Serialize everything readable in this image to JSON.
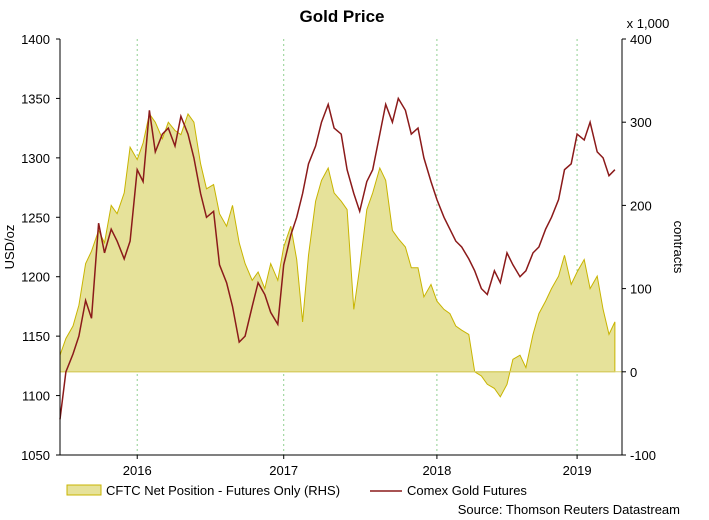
{
  "chart_data": {
    "type": "line",
    "title": "Gold Price",
    "source": "Source: Thomson Reuters Datastream",
    "left_axis": {
      "label": "USD/oz",
      "range": [
        1050,
        1400
      ],
      "ticks": [
        "1050",
        "1100",
        "1150",
        "1200",
        "1250",
        "1300",
        "1350",
        "1400"
      ]
    },
    "right_axis": {
      "label": "contracts",
      "multiplier_label": "x 1,000",
      "range": [
        -100,
        400
      ],
      "ticks": [
        "-100",
        "0",
        "100",
        "200",
        "300",
        "400"
      ]
    },
    "x_axis": {
      "range": [
        "2015-08-01",
        "2019-04-01"
      ],
      "tick_labels": [
        {
          "label": "2016",
          "date": "2016-02-01"
        },
        {
          "label": "2017",
          "date": "2017-01-15"
        },
        {
          "label": "2018",
          "date": "2018-01-15"
        },
        {
          "label": "2019",
          "date": "2018-12-15"
        }
      ]
    },
    "grid": true,
    "legend_position": "bottom",
    "series": [
      {
        "name": "CFTC Net Position - Futures Only (RHS)",
        "kind": "area",
        "axis": "right",
        "color": "#e6e29a",
        "stroke": "#c8b400",
        "points": [
          [
            "2015-08-01",
            20
          ],
          [
            "2015-08-15",
            40
          ],
          [
            "2015-09-01",
            55
          ],
          [
            "2015-09-15",
            80
          ],
          [
            "2015-10-01",
            130
          ],
          [
            "2015-10-15",
            145
          ],
          [
            "2015-11-01",
            170
          ],
          [
            "2015-11-15",
            155
          ],
          [
            "2015-12-01",
            200
          ],
          [
            "2015-12-15",
            190
          ],
          [
            "2016-01-01",
            215
          ],
          [
            "2016-01-15",
            270
          ],
          [
            "2016-02-01",
            255
          ],
          [
            "2016-02-15",
            275
          ],
          [
            "2016-03-01",
            310
          ],
          [
            "2016-03-15",
            300
          ],
          [
            "2016-04-01",
            280
          ],
          [
            "2016-04-15",
            300
          ],
          [
            "2016-05-01",
            290
          ],
          [
            "2016-05-15",
            285
          ],
          [
            "2016-06-01",
            310
          ],
          [
            "2016-06-15",
            300
          ],
          [
            "2016-07-01",
            250
          ],
          [
            "2016-07-15",
            220
          ],
          [
            "2016-08-01",
            225
          ],
          [
            "2016-08-15",
            190
          ],
          [
            "2016-09-01",
            175
          ],
          [
            "2016-09-15",
            200
          ],
          [
            "2016-10-01",
            155
          ],
          [
            "2016-10-15",
            130
          ],
          [
            "2016-11-01",
            110
          ],
          [
            "2016-11-15",
            120
          ],
          [
            "2016-12-01",
            100
          ],
          [
            "2016-12-15",
            130
          ],
          [
            "2017-01-01",
            110
          ],
          [
            "2017-01-15",
            150
          ],
          [
            "2017-02-01",
            175
          ],
          [
            "2017-02-15",
            135
          ],
          [
            "2017-03-01",
            60
          ],
          [
            "2017-03-15",
            140
          ],
          [
            "2017-04-01",
            205
          ],
          [
            "2017-04-15",
            230
          ],
          [
            "2017-05-01",
            245
          ],
          [
            "2017-05-15",
            215
          ],
          [
            "2017-06-01",
            205
          ],
          [
            "2017-06-15",
            195
          ],
          [
            "2017-07-01",
            75
          ],
          [
            "2017-07-15",
            125
          ],
          [
            "2017-08-01",
            195
          ],
          [
            "2017-08-15",
            215
          ],
          [
            "2017-09-01",
            245
          ],
          [
            "2017-09-15",
            230
          ],
          [
            "2017-10-01",
            170
          ],
          [
            "2017-10-15",
            160
          ],
          [
            "2017-11-01",
            150
          ],
          [
            "2017-11-15",
            125
          ],
          [
            "2017-12-01",
            125
          ],
          [
            "2017-12-15",
            90
          ],
          [
            "2018-01-01",
            105
          ],
          [
            "2018-01-15",
            85
          ],
          [
            "2018-02-01",
            75
          ],
          [
            "2018-02-15",
            70
          ],
          [
            "2018-03-01",
            55
          ],
          [
            "2018-03-15",
            50
          ],
          [
            "2018-04-01",
            45
          ],
          [
            "2018-04-15",
            0
          ],
          [
            "2018-05-01",
            -5
          ],
          [
            "2018-05-15",
            -15
          ],
          [
            "2018-06-01",
            -20
          ],
          [
            "2018-06-15",
            -30
          ],
          [
            "2018-07-01",
            -15
          ],
          [
            "2018-07-15",
            15
          ],
          [
            "2018-08-01",
            20
          ],
          [
            "2018-08-15",
            5
          ],
          [
            "2018-09-01",
            45
          ],
          [
            "2018-09-15",
            70
          ],
          [
            "2018-10-01",
            85
          ],
          [
            "2018-10-15",
            100
          ],
          [
            "2018-11-01",
            115
          ],
          [
            "2018-11-15",
            140
          ],
          [
            "2018-12-01",
            105
          ],
          [
            "2018-12-15",
            120
          ],
          [
            "2019-01-01",
            135
          ],
          [
            "2019-01-15",
            100
          ],
          [
            "2019-02-01",
            115
          ],
          [
            "2019-02-15",
            75
          ],
          [
            "2019-03-01",
            45
          ],
          [
            "2019-03-15",
            60
          ]
        ]
      },
      {
        "name": "Comex Gold Futures",
        "kind": "line",
        "axis": "left",
        "color": "#8b1a1a",
        "points": [
          [
            "2015-08-01",
            1080
          ],
          [
            "2015-08-15",
            1120
          ],
          [
            "2015-09-01",
            1135
          ],
          [
            "2015-09-15",
            1150
          ],
          [
            "2015-10-01",
            1180
          ],
          [
            "2015-10-15",
            1165
          ],
          [
            "2015-11-01",
            1245
          ],
          [
            "2015-11-15",
            1220
          ],
          [
            "2015-12-01",
            1240
          ],
          [
            "2015-12-15",
            1230
          ],
          [
            "2016-01-01",
            1215
          ],
          [
            "2016-01-15",
            1230
          ],
          [
            "2016-02-01",
            1290
          ],
          [
            "2016-02-15",
            1280
          ],
          [
            "2016-03-01",
            1340
          ],
          [
            "2016-03-15",
            1305
          ],
          [
            "2016-04-01",
            1320
          ],
          [
            "2016-04-15",
            1325
          ],
          [
            "2016-05-01",
            1310
          ],
          [
            "2016-05-15",
            1335
          ],
          [
            "2016-06-01",
            1320
          ],
          [
            "2016-06-15",
            1300
          ],
          [
            "2016-07-01",
            1270
          ],
          [
            "2016-07-15",
            1250
          ],
          [
            "2016-08-01",
            1255
          ],
          [
            "2016-08-15",
            1210
          ],
          [
            "2016-09-01",
            1195
          ],
          [
            "2016-09-15",
            1175
          ],
          [
            "2016-10-01",
            1145
          ],
          [
            "2016-10-15",
            1150
          ],
          [
            "2016-11-01",
            1175
          ],
          [
            "2016-11-15",
            1195
          ],
          [
            "2016-12-01",
            1185
          ],
          [
            "2016-12-15",
            1170
          ],
          [
            "2017-01-01",
            1160
          ],
          [
            "2017-01-15",
            1210
          ],
          [
            "2017-02-01",
            1235
          ],
          [
            "2017-02-15",
            1250
          ],
          [
            "2017-03-01",
            1270
          ],
          [
            "2017-03-15",
            1295
          ],
          [
            "2017-04-01",
            1310
          ],
          [
            "2017-04-15",
            1330
          ],
          [
            "2017-05-01",
            1345
          ],
          [
            "2017-05-15",
            1325
          ],
          [
            "2017-06-01",
            1320
          ],
          [
            "2017-06-15",
            1290
          ],
          [
            "2017-07-01",
            1270
          ],
          [
            "2017-07-15",
            1255
          ],
          [
            "2017-08-01",
            1280
          ],
          [
            "2017-08-15",
            1290
          ],
          [
            "2017-09-01",
            1320
          ],
          [
            "2017-09-15",
            1345
          ],
          [
            "2017-10-01",
            1330
          ],
          [
            "2017-10-15",
            1350
          ],
          [
            "2017-11-01",
            1340
          ],
          [
            "2017-11-15",
            1320
          ],
          [
            "2017-12-01",
            1325
          ],
          [
            "2017-12-15",
            1300
          ],
          [
            "2018-01-01",
            1280
          ],
          [
            "2018-01-15",
            1265
          ],
          [
            "2018-02-01",
            1250
          ],
          [
            "2018-02-15",
            1240
          ],
          [
            "2018-03-01",
            1230
          ],
          [
            "2018-03-15",
            1225
          ],
          [
            "2018-04-01",
            1215
          ],
          [
            "2018-04-15",
            1205
          ],
          [
            "2018-05-01",
            1190
          ],
          [
            "2018-05-15",
            1185
          ],
          [
            "2018-06-01",
            1205
          ],
          [
            "2018-06-15",
            1195
          ],
          [
            "2018-07-01",
            1220
          ],
          [
            "2018-07-15",
            1210
          ],
          [
            "2018-08-01",
            1200
          ],
          [
            "2018-08-15",
            1205
          ],
          [
            "2018-09-01",
            1220
          ],
          [
            "2018-09-15",
            1225
          ],
          [
            "2018-10-01",
            1240
          ],
          [
            "2018-10-15",
            1250
          ],
          [
            "2018-11-01",
            1265
          ],
          [
            "2018-11-15",
            1290
          ],
          [
            "2018-12-01",
            1295
          ],
          [
            "2018-12-15",
            1320
          ],
          [
            "2019-01-01",
            1315
          ],
          [
            "2019-01-15",
            1330
          ],
          [
            "2019-02-01",
            1305
          ],
          [
            "2019-02-15",
            1300
          ],
          [
            "2019-03-01",
            1285
          ],
          [
            "2019-03-15",
            1290
          ]
        ]
      }
    ]
  }
}
